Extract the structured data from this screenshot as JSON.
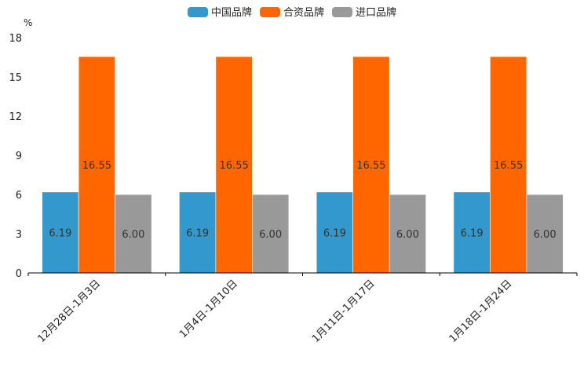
{
  "chart_data": {
    "type": "bar",
    "unit": "%",
    "categories": [
      "12月28日-1月3日",
      "1月4日-1月10日",
      "1月11日-1月17日",
      "1月18日-1月24日"
    ],
    "series": [
      {
        "name": "中国品牌",
        "color": "#3399cc",
        "values": [
          6.19,
          6.19,
          6.19,
          6.19
        ],
        "labels": [
          "6.19",
          "6.19",
          "6.19",
          "6.19"
        ]
      },
      {
        "name": "合资品牌",
        "color": "#ff6600",
        "values": [
          16.55,
          16.55,
          16.55,
          16.55
        ],
        "labels": [
          "16.55",
          "16.55",
          "16.55",
          "16.55"
        ]
      },
      {
        "name": "进口品牌",
        "color": "#999999",
        "values": [
          6.0,
          6.0,
          6.0,
          6.0
        ],
        "labels": [
          "6.00",
          "6.00",
          "6.00",
          "6.00"
        ]
      }
    ],
    "ylim": [
      0,
      18
    ],
    "yticks": [
      "0",
      "3",
      "6",
      "9",
      "12",
      "15",
      "18"
    ],
    "title": "",
    "xlabel": "",
    "ylabel": "%",
    "legend_position": "top-center"
  }
}
